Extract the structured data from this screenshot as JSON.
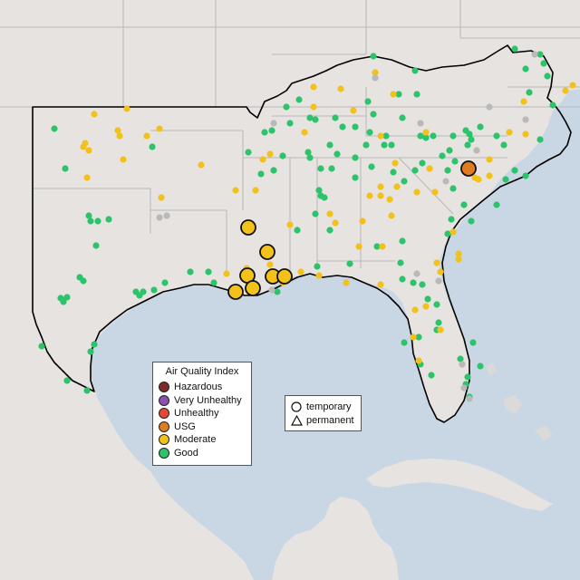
{
  "colors": {
    "land": "#e6e3e1",
    "water": "#c9d7e5",
    "state_lines": "#b9b9b9",
    "region_outline": "#000000",
    "hazardous": "#7e2a2a",
    "very_unhealthy": "#8e4fb3",
    "unhealthy": "#e24a33",
    "usg": "#e07b1f",
    "moderate": "#f2c21b",
    "good": "#2cc36b",
    "no_data": "#b9b9b9"
  },
  "aqi_legend": {
    "title": "Air Quality Index",
    "items": [
      {
        "label": "Hazardous",
        "color": "#7e2a2a"
      },
      {
        "label": "Very Unhealthy",
        "color": "#8e4fb3"
      },
      {
        "label": "Unhealthy",
        "color": "#e24a33"
      },
      {
        "label": "USG",
        "color": "#e07b1f"
      },
      {
        "label": "Moderate",
        "color": "#f2c21b"
      },
      {
        "label": "Good",
        "color": "#2cc36b"
      }
    ]
  },
  "monitor_type_legend": {
    "temporary": "temporary",
    "permanent": "permanent"
  }
}
